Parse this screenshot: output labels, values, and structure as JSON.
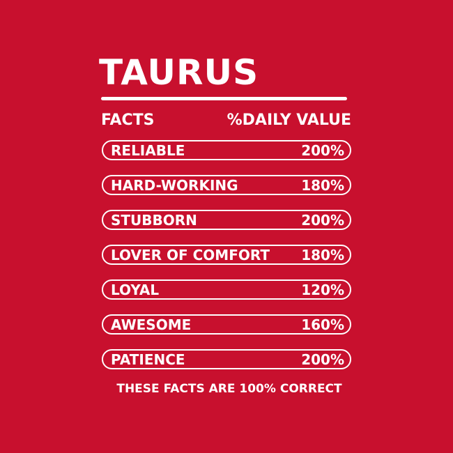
{
  "title": "TAURUS",
  "header": {
    "left": "FACTS",
    "right": "%DAILY VALUE"
  },
  "rows": [
    {
      "label": "RELIABLE",
      "value": "200%"
    },
    {
      "label": "HARD-WORKING",
      "value": "180%"
    },
    {
      "label": "STUBBORN",
      "value": "200%"
    },
    {
      "label": "LOVER OF COMFORT",
      "value": "180%"
    },
    {
      "label": "LOYAL",
      "value": "120%"
    },
    {
      "label": "AWESOME",
      "value": "160%"
    },
    {
      "label": "PATIENCE",
      "value": "200%"
    }
  ],
  "footer": "THESE FACTS ARE 100% CORRECT",
  "colors": {
    "background": "#c8102e",
    "foreground": "#ffffff"
  }
}
